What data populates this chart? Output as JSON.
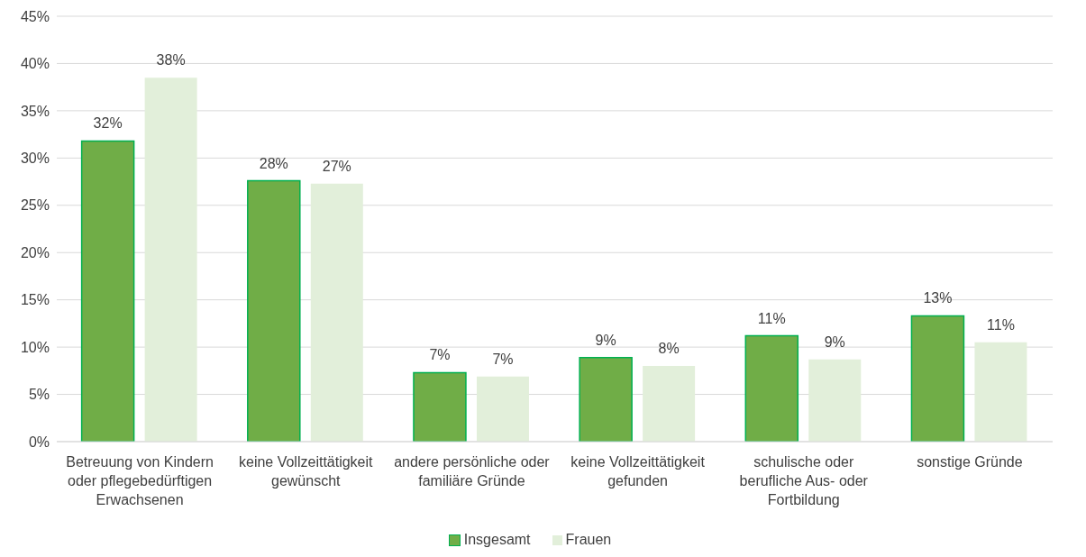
{
  "chart_data": {
    "type": "bar",
    "categories": [
      "Betreuung von Kindern oder pflegebedürftigen Erwachsenen",
      "keine Vollzeittätigkeit gewünscht",
      "andere persönliche oder familiäre Gründe",
      "keine Vollzeittätigkeit gefunden",
      "schulische oder berufliche Aus- oder Fortbildung",
      "sonstige Gründe"
    ],
    "series": [
      {
        "name": "Insgesamt",
        "color": "#70ad47",
        "values": [
          31.8,
          27.6,
          7.3,
          8.9,
          11.2,
          13.3
        ],
        "value_labels": [
          "32%",
          "28%",
          "7%",
          "9%",
          "11%",
          "13%"
        ]
      },
      {
        "name": "Frauen",
        "color": "#e2efda",
        "values": [
          38.5,
          27.3,
          6.9,
          8.0,
          8.7,
          10.5
        ],
        "value_labels": [
          "38%",
          "27%",
          "7%",
          "8%",
          "9%",
          "11%"
        ]
      }
    ],
    "ylim": [
      0,
      45
    ],
    "yticks": [
      {
        "value": 0,
        "label": "0%"
      },
      {
        "value": 5,
        "label": "5%"
      },
      {
        "value": 10,
        "label": "10%"
      },
      {
        "value": 15,
        "label": "15%"
      },
      {
        "value": 20,
        "label": "20%"
      },
      {
        "value": 25,
        "label": "25%"
      },
      {
        "value": 30,
        "label": "30%"
      },
      {
        "value": 35,
        "label": "35%"
      },
      {
        "value": 40,
        "label": "40%"
      },
      {
        "value": 45,
        "label": "45%"
      }
    ],
    "grid": "y",
    "legend": "bottom"
  }
}
